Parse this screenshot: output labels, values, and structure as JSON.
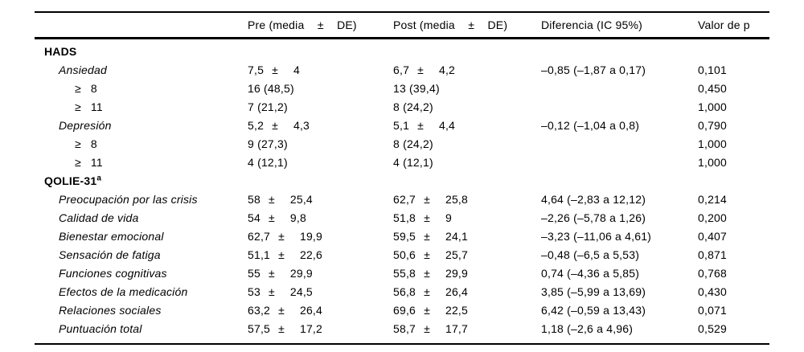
{
  "symbols": {
    "plus_minus": "±",
    "ge": "≥"
  },
  "table": {
    "headers": {
      "label": "",
      "pre": "Pre (media    ±    DE)",
      "post": "Post (media    ±    DE)",
      "diferencia": "Diferencia (IC 95%)",
      "valor_p": "Valor de p"
    },
    "rows": [
      {
        "kind": "section",
        "label": "HADS"
      },
      {
        "kind": "item",
        "label": "Ansiedad",
        "pre": {
          "mean": "7,5",
          "sd": "4"
        },
        "post": {
          "mean": "6,7",
          "sd": "4,2"
        },
        "diff": "–0,85 (–1,87 a 0,17)",
        "p": "0,101"
      },
      {
        "kind": "cutoff",
        "cutoff": "8",
        "pre": {
          "count": "16 (48,5)"
        },
        "post": {
          "count": "13 (39,4)"
        },
        "diff": "",
        "p": "0,450"
      },
      {
        "kind": "cutoff",
        "cutoff": "11",
        "pre": {
          "count": "7 (21,2)"
        },
        "post": {
          "count": "8 (24,2)"
        },
        "diff": "",
        "p": "1,000"
      },
      {
        "kind": "item",
        "label": "Depresión",
        "pre": {
          "mean": "5,2",
          "sd": "4,3"
        },
        "post": {
          "mean": "5,1",
          "sd": "4,4"
        },
        "diff": "–0,12 (–1,04 a 0,8)",
        "p": "0,790"
      },
      {
        "kind": "cutoff",
        "cutoff": "8",
        "pre": {
          "count": "9 (27,3)"
        },
        "post": {
          "count": "8 (24,2)"
        },
        "diff": "",
        "p": "1,000"
      },
      {
        "kind": "cutoff",
        "cutoff": "11",
        "pre": {
          "count": "4 (12,1)"
        },
        "post": {
          "count": "4 (12,1)"
        },
        "diff": "",
        "p": "1,000"
      },
      {
        "kind": "section",
        "label": "QOLIE-31",
        "sup": "a"
      },
      {
        "kind": "item",
        "label": "Preocupación por las crisis",
        "pre": {
          "mean": "58",
          "sd": "25,4"
        },
        "post": {
          "mean": "62,7",
          "sd": "25,8"
        },
        "diff": "4,64 (–2,83 a 12,12)",
        "p": "0,214"
      },
      {
        "kind": "item",
        "label": "Calidad de vida",
        "pre": {
          "mean": "54",
          "sd": "9,8"
        },
        "post": {
          "mean": "51,8",
          "sd": "9"
        },
        "diff": "–2,26 (–5,78 a 1,26)",
        "p": "0,200"
      },
      {
        "kind": "item",
        "label": "Bienestar emocional",
        "pre": {
          "mean": "62,7",
          "sd": "19,9"
        },
        "post": {
          "mean": "59,5",
          "sd": "24,1"
        },
        "diff": "–3,23 (–11,06 a 4,61)",
        "p": "0,407"
      },
      {
        "kind": "item",
        "label": "Sensación de fatiga",
        "pre": {
          "mean": "51,1",
          "sd": "22,6"
        },
        "post": {
          "mean": "50,6",
          "sd": "25,7"
        },
        "diff": "–0,48 (–6,5 a 5,53)",
        "p": "0,871"
      },
      {
        "kind": "item",
        "label": "Funciones cognitivas",
        "pre": {
          "mean": "55",
          "sd": "29,9"
        },
        "post": {
          "mean": "55,8",
          "sd": "29,9"
        },
        "diff": "0,74 (–4,36 a 5,85)",
        "p": "0,768"
      },
      {
        "kind": "item",
        "label": "Efectos de la medicación",
        "pre": {
          "mean": "53",
          "sd": "24,5"
        },
        "post": {
          "mean": "56,8",
          "sd": "26,4"
        },
        "diff": "3,85 (–5,99 a 13,69)",
        "p": "0,430"
      },
      {
        "kind": "item",
        "label": "Relaciones sociales",
        "pre": {
          "mean": "63,2",
          "sd": "26,4"
        },
        "post": {
          "mean": "69,6",
          "sd": "22,5"
        },
        "diff": "6,42 (–0,59 a 13,43)",
        "p": "0,071"
      },
      {
        "kind": "item",
        "label": "Puntuación total",
        "pre": {
          "mean": "57,5",
          "sd": "17,2"
        },
        "post": {
          "mean": "58,7",
          "sd": "17,7"
        },
        "diff": "1,18 (–2,6 a 4,96)",
        "p": "0,529"
      }
    ]
  }
}
